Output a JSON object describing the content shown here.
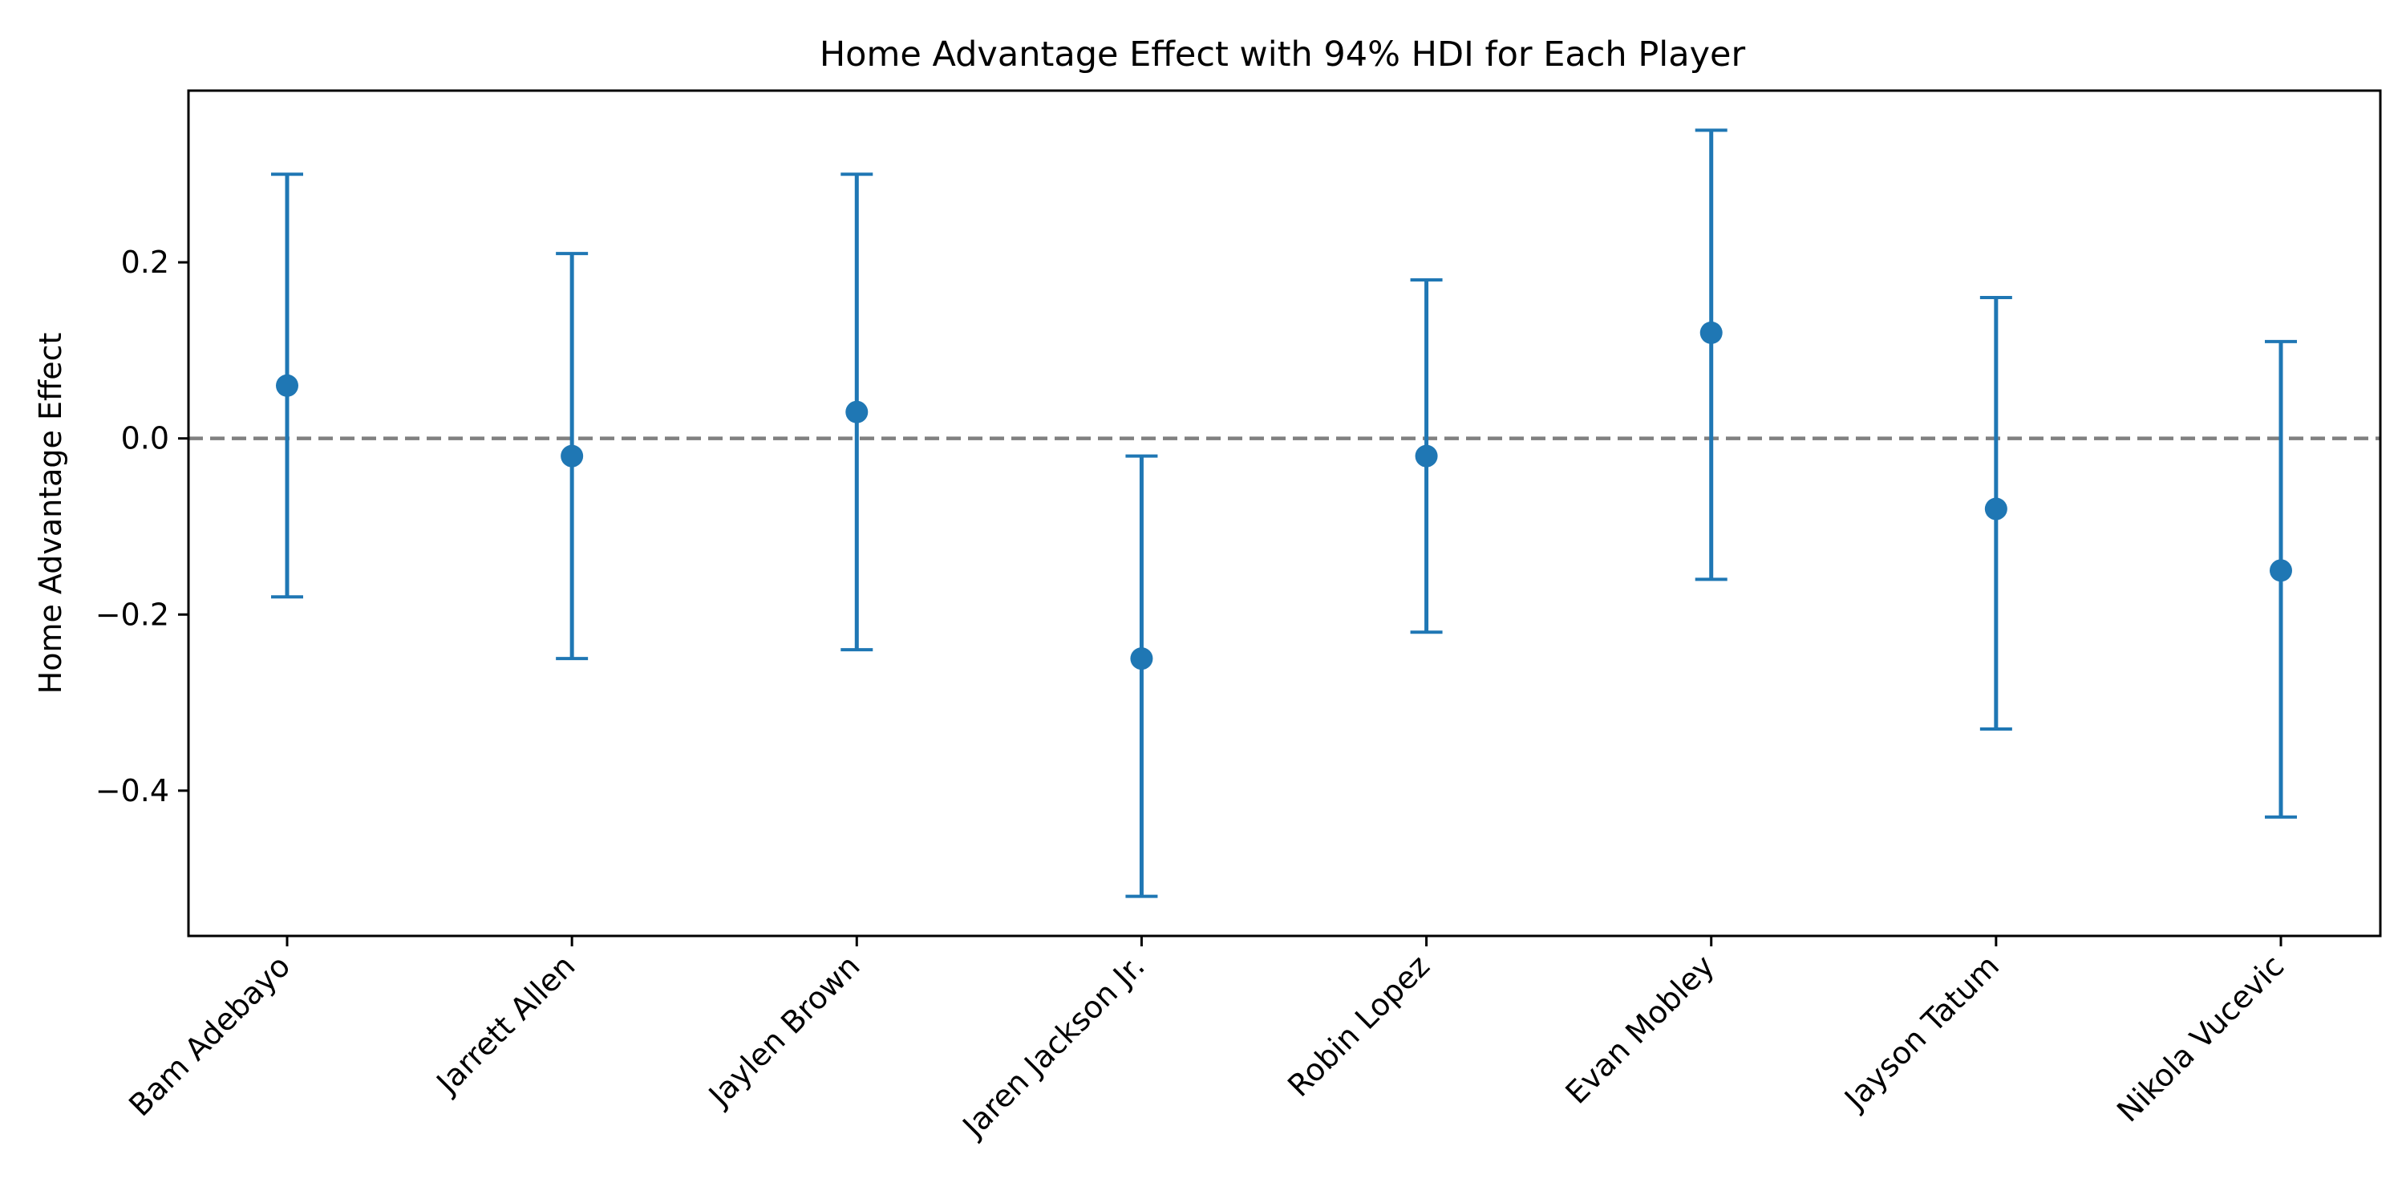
{
  "chart_data": {
    "type": "errorbar",
    "title": "Home Advantage Effect with 94% HDI for Each Player",
    "xlabel": "",
    "ylabel": "Home Advantage Effect",
    "categories": [
      "Bam Adebayo",
      "Jarrett Allen",
      "Jaylen Brown",
      "Jaren Jackson Jr.",
      "Robin Lopez",
      "Evan Mobley",
      "Jayson Tatum",
      "Nikola Vucevic"
    ],
    "values": [
      0.06,
      -0.02,
      0.03,
      -0.25,
      -0.02,
      0.12,
      -0.08,
      -0.15
    ],
    "hdi_lower": [
      -0.18,
      -0.25,
      -0.24,
      -0.52,
      -0.22,
      -0.16,
      -0.33,
      -0.43
    ],
    "hdi_upper": [
      0.3,
      0.21,
      0.3,
      -0.02,
      0.18,
      0.35,
      0.16,
      0.11
    ],
    "yticks": [
      {
        "value": -0.4,
        "label": "−0.4"
      },
      {
        "value": -0.2,
        "label": "−0.2"
      },
      {
        "value": 0.0,
        "label": "0.0"
      },
      {
        "value": 0.2,
        "label": "0.2"
      }
    ],
    "ylim": [
      -0.565,
      0.395
    ],
    "reference_line": 0.0,
    "grid": false,
    "colors": {
      "series": "#1f77b4",
      "reference_line": "#808080"
    }
  }
}
